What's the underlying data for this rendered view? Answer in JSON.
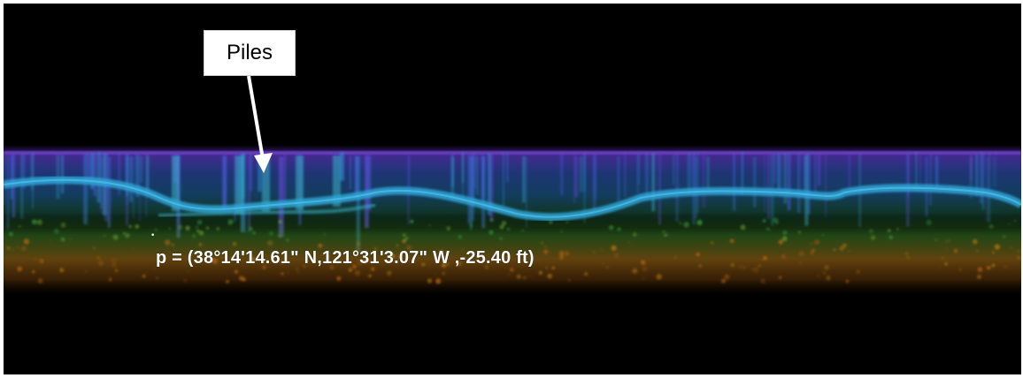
{
  "callout": {
    "label": "Piles"
  },
  "readout": {
    "text": "p = (38°14'14.61\" N,121°31'3.07\" W ,-25.40 ft)"
  },
  "colors": {
    "background": "#000000",
    "surface_band": "#6a3fc8",
    "water_column": "#2a7bd6",
    "seabed_line": "#2fa6d8",
    "sediment_green": "#3a9a3a",
    "sediment_orange": "#c06a10",
    "callout_fill": "#ffffff",
    "readout_text": "#ffffff"
  },
  "icons": {
    "arrow": "callout-arrow",
    "probe": "probe-marker-icon"
  }
}
